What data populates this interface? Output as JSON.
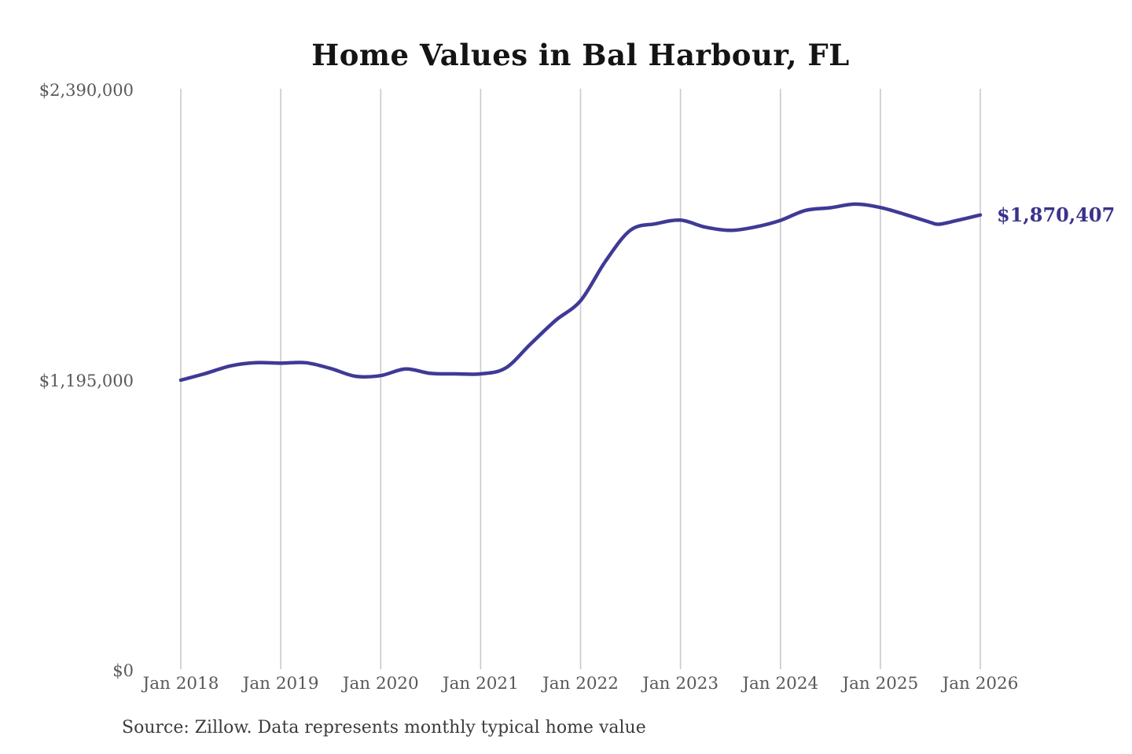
{
  "chart": {
    "title": "Home Values in Bal Harbour, FL",
    "source_note": "Source: Zillow. Data represents monthly typical home value",
    "end_label": "$1,870,407",
    "colors": {
      "line": "#3f3a96",
      "end_label": "#3a338c",
      "grid": "#c9c9c9",
      "axis_text": "#595959",
      "title_text": "#141414",
      "source_text": "#3c3c3c",
      "background": "#ffffff"
    }
  },
  "chart_data": {
    "type": "line",
    "title": "Home Values in Bal Harbour, FL",
    "xlabel": "",
    "ylabel": "",
    "ylim": [
      0,
      2390000
    ],
    "grid": "vertical-only",
    "legend": "none",
    "yticks": [
      {
        "value": 0,
        "label": "$0"
      },
      {
        "value": 1195000,
        "label": "$1,195,000"
      },
      {
        "value": 2390000,
        "label": "$2,390,000"
      }
    ],
    "xticks": [
      {
        "t": 2018.0,
        "label": "Jan 2018"
      },
      {
        "t": 2019.0,
        "label": "Jan 2019"
      },
      {
        "t": 2020.0,
        "label": "Jan 2020"
      },
      {
        "t": 2021.0,
        "label": "Jan 2021"
      },
      {
        "t": 2022.0,
        "label": "Jan 2022"
      },
      {
        "t": 2023.0,
        "label": "Jan 2023"
      },
      {
        "t": 2024.0,
        "label": "Jan 2024"
      },
      {
        "t": 2025.0,
        "label": "Jan 2025"
      },
      {
        "t": 2026.0,
        "label": "Jan 2026"
      }
    ],
    "series": [
      {
        "name": "Typical home value",
        "points": [
          [
            "2018-01",
            1190000
          ],
          [
            "2018-04",
            1218000
          ],
          [
            "2018-07",
            1249000
          ],
          [
            "2018-10",
            1262000
          ],
          [
            "2019-01",
            1260000
          ],
          [
            "2019-04",
            1262000
          ],
          [
            "2019-07",
            1238000
          ],
          [
            "2019-10",
            1206000
          ],
          [
            "2020-01",
            1209000
          ],
          [
            "2020-04",
            1236000
          ],
          [
            "2020-07",
            1218000
          ],
          [
            "2020-10",
            1216000
          ],
          [
            "2021-01",
            1216000
          ],
          [
            "2021-04",
            1240000
          ],
          [
            "2021-07",
            1339000
          ],
          [
            "2021-10",
            1436000
          ],
          [
            "2022-01",
            1517000
          ],
          [
            "2022-04",
            1680000
          ],
          [
            "2022-07",
            1808000
          ],
          [
            "2022-10",
            1834000
          ],
          [
            "2023-01",
            1849000
          ],
          [
            "2023-04",
            1820000
          ],
          [
            "2023-07",
            1807000
          ],
          [
            "2023-10",
            1821000
          ],
          [
            "2024-01",
            1848000
          ],
          [
            "2024-04",
            1889000
          ],
          [
            "2024-07",
            1900000
          ],
          [
            "2024-10",
            1915000
          ],
          [
            "2025-01",
            1901000
          ],
          [
            "2025-04",
            1872000
          ],
          [
            "2025-07",
            1840000
          ],
          [
            "2025-08",
            1832000
          ],
          [
            "2025-10",
            1846000
          ],
          [
            "2026-01",
            1870407
          ]
        ]
      }
    ],
    "latest": {
      "date": "2026-01",
      "value": 1870407,
      "label": "$1,870,407"
    }
  }
}
